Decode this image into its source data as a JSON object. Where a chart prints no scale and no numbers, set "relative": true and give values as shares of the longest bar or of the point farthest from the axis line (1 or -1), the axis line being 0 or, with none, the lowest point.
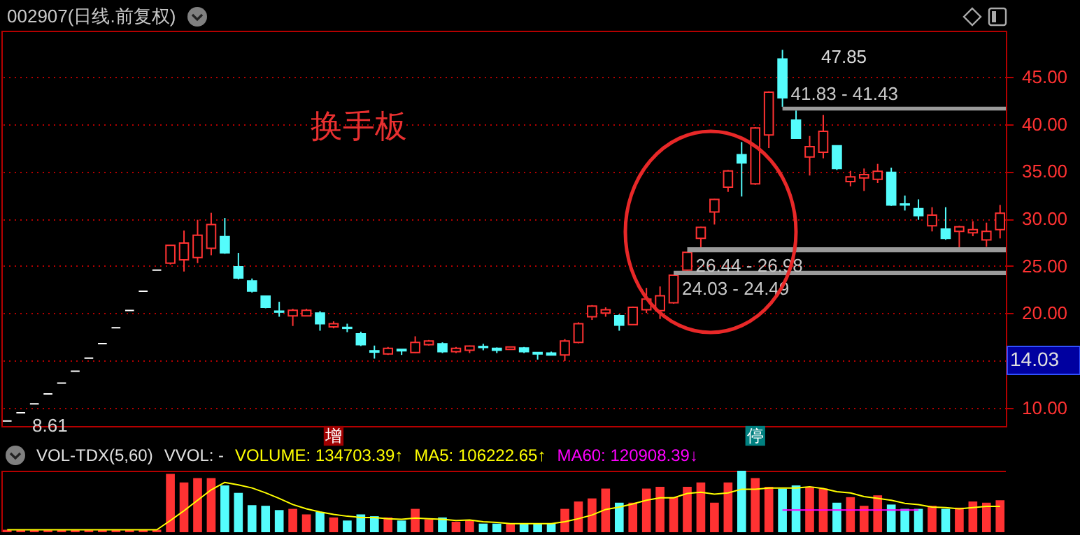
{
  "chart_data": [
    {
      "type": "candlestick",
      "title": "002907(日线.前复权)",
      "categories": [
        null,
        null,
        null,
        null,
        null,
        null,
        null,
        null,
        null,
        null,
        null,
        null,
        null,
        null,
        null,
        null,
        null,
        null,
        null,
        null,
        null,
        null,
        null,
        null,
        null,
        null,
        null,
        null,
        null,
        null,
        null,
        null,
        null,
        null,
        null,
        null,
        null,
        null,
        null,
        null,
        null,
        null,
        null,
        null,
        null,
        null,
        null,
        null,
        null,
        null,
        null,
        null,
        null,
        null,
        null,
        null,
        null,
        null,
        null,
        null,
        null,
        null,
        null,
        null,
        null,
        null,
        null,
        null,
        null,
        null,
        null,
        null,
        null,
        null
      ],
      "ohlc": [
        [
          8.61,
          8.61,
          8.61,
          8.61
        ],
        [
          9.47,
          9.47,
          9.47,
          9.47
        ],
        [
          10.42,
          10.42,
          10.42,
          10.42
        ],
        [
          11.46,
          11.46,
          11.46,
          11.46
        ],
        [
          12.61,
          12.61,
          12.61,
          12.61
        ],
        [
          13.87,
          13.87,
          13.87,
          13.87
        ],
        [
          15.25,
          15.25,
          15.25,
          15.25
        ],
        [
          16.78,
          16.78,
          16.78,
          16.78
        ],
        [
          18.46,
          18.46,
          18.46,
          18.46
        ],
        [
          20.3,
          20.3,
          20.3,
          20.3
        ],
        [
          22.33,
          22.33,
          22.33,
          22.33
        ],
        [
          24.56,
          24.56,
          24.56,
          24.56
        ],
        [
          25.3,
          27.17,
          25.15,
          27.17
        ],
        [
          25.64,
          28.74,
          24.41,
          27.41
        ],
        [
          25.89,
          29.88,
          25.3,
          28.25
        ],
        [
          26.87,
          30.62,
          26.13,
          29.38
        ],
        [
          28.1,
          30.07,
          26.28,
          26.38
        ],
        [
          24.9,
          26.38,
          23.57,
          23.72
        ],
        [
          23.42,
          23.67,
          22.19,
          22.34
        ],
        [
          21.8,
          21.8,
          20.52,
          20.62
        ],
        [
          20.22,
          21.21,
          19.63,
          20.12
        ],
        [
          19.72,
          20.47,
          18.65,
          20.32
        ],
        [
          19.72,
          20.47,
          19.72,
          20.32
        ],
        [
          20.02,
          20.22,
          18.15,
          18.89
        ],
        [
          18.55,
          19.14,
          18.4,
          18.89
        ],
        [
          18.5,
          18.89,
          18.0,
          18.4
        ],
        [
          17.81,
          18.05,
          16.53,
          16.67
        ],
        [
          16.03,
          16.58,
          15.2,
          15.89
        ],
        [
          15.69,
          16.43,
          15.59,
          16.28
        ],
        [
          16.18,
          16.18,
          15.59,
          16.03
        ],
        [
          15.84,
          17.56,
          15.79,
          16.92
        ],
        [
          16.67,
          17.17,
          16.58,
          17.07
        ],
        [
          16.77,
          16.92,
          15.79,
          15.94
        ],
        [
          15.94,
          16.43,
          15.79,
          16.28
        ],
        [
          16.08,
          16.58,
          15.79,
          16.53
        ],
        [
          16.48,
          16.77,
          16.08,
          16.38
        ],
        [
          16.28,
          16.38,
          15.79,
          16.08
        ],
        [
          16.18,
          16.43,
          16.18,
          16.43
        ],
        [
          16.33,
          16.43,
          15.79,
          15.94
        ],
        [
          15.84,
          15.84,
          15.1,
          15.69
        ],
        [
          15.79,
          15.94,
          15.54,
          15.59
        ],
        [
          15.59,
          17.27,
          14.95,
          17.07
        ],
        [
          16.92,
          19.04,
          16.82,
          18.89
        ],
        [
          19.63,
          20.86,
          19.29,
          20.76
        ],
        [
          20.02,
          20.62,
          19.63,
          20.37
        ],
        [
          19.73,
          19.88,
          18.15,
          18.74
        ],
        [
          18.79,
          20.71,
          18.79,
          20.62
        ],
        [
          20.37,
          22.68,
          20.02,
          21.5
        ],
        [
          20.27,
          22.83,
          19.39,
          21.85
        ],
        [
          21.11,
          24.03,
          21.01,
          24.03
        ],
        [
          24.56,
          26.44,
          24.49,
          26.44
        ],
        [
          27.91,
          29.14,
          26.98,
          29.09
        ],
        [
          30.71,
          32.09,
          29.38,
          32.04
        ],
        [
          33.33,
          35.15,
          32.83,
          35.05
        ],
        [
          36.77,
          38.1,
          32.34,
          35.89
        ],
        [
          33.67,
          39.68,
          33.57,
          39.58
        ],
        [
          38.84,
          43.47,
          37.46,
          43.37
        ],
        [
          46.87,
          47.85,
          41.83,
          42.78
        ],
        [
          40.42,
          41.43,
          38.5,
          38.5
        ],
        [
          36.53,
          38.74,
          34.56,
          37.61
        ],
        [
          37.02,
          40.96,
          36.38,
          39.24
        ],
        [
          37.71,
          37.71,
          35.15,
          35.3
        ],
        [
          33.92,
          35.05,
          33.42,
          34.41
        ],
        [
          34.31,
          35.3,
          32.93,
          34.66
        ],
        [
          34.16,
          35.79,
          33.77,
          35.0
        ],
        [
          34.9,
          35.39,
          31.35,
          31.45
        ],
        [
          31.55,
          32.44,
          30.86,
          31.45
        ],
        [
          31.06,
          32.04,
          29.88,
          30.32
        ],
        [
          29.24,
          31.21,
          28.65,
          30.37
        ],
        [
          28.89,
          31.21,
          27.76,
          27.91
        ],
        [
          28.65,
          29.24,
          26.67,
          29.14
        ],
        [
          28.5,
          29.73,
          28.15,
          28.84
        ],
        [
          27.76,
          29.58,
          27.02,
          28.65
        ],
        [
          28.84,
          31.45,
          27.91,
          30.57
        ]
      ],
      "colors": [
        "#ffffff",
        "#ffffff",
        "#ffffff",
        "#ffffff",
        "#ffffff",
        "#ffffff",
        "#ffffff",
        "#ffffff",
        "#ffffff",
        "#ffffff",
        "#ffffff",
        "#ffffff",
        "#ff3232",
        "#ff3232",
        "#ff3232",
        "#ff3232",
        "#54fcfc",
        "#54fcfc",
        "#54fcfc",
        "#54fcfc",
        "#54fcfc",
        "#ff3232",
        "#ff3232",
        "#54fcfc",
        "#ff3232",
        "#54fcfc",
        "#54fcfc",
        "#54fcfc",
        "#ff3232",
        "#54fcfc",
        "#ff3232",
        "#ff3232",
        "#54fcfc",
        "#ff3232",
        "#ff3232",
        "#54fcfc",
        "#54fcfc",
        "#ff3232",
        "#54fcfc",
        "#54fcfc",
        "#54fcfc",
        "#ff3232",
        "#ff3232",
        "#ff3232",
        "#ff3232",
        "#54fcfc",
        "#ff3232",
        "#ff3232",
        "#ff3232",
        "#ff3232",
        "#ff3232",
        "#ff3232",
        "#ff3232",
        "#ff3232",
        "#54fcfc",
        "#ff3232",
        "#ff3232",
        "#54fcfc",
        "#54fcfc",
        "#ff3232",
        "#ff3232",
        "#54fcfc",
        "#ff3232",
        "#ff3232",
        "#ff3232",
        "#54fcfc",
        "#54fcfc",
        "#54fcfc",
        "#ff3232",
        "#54fcfc",
        "#ff3232",
        "#ff3232",
        "#ff3232",
        "#ff3232"
      ],
      "ylim": [
        8.07,
        49.87
      ],
      "yticks": [
        {
          "value": 10,
          "label": "10.00"
        },
        {
          "value": 15,
          "label": null
        },
        {
          "value": 20,
          "label": "20.00"
        },
        {
          "value": 25,
          "label": "25.00"
        },
        {
          "value": 30,
          "label": "30.00"
        },
        {
          "value": 35,
          "label": "35.00"
        },
        {
          "value": 40,
          "label": "40.00"
        },
        {
          "value": 45,
          "label": "45.00"
        }
      ],
      "grid": "y",
      "tick_labels": "y",
      "bands": [
        {
          "axis": "y",
          "from": 41.83,
          "to": 41.43,
          "label": "41.83 - 41.43"
        },
        {
          "axis": "y",
          "from": 26.44,
          "to": 26.98,
          "label": "26.44 - 26.98"
        },
        {
          "axis": "y",
          "from": 24.03,
          "to": 24.49,
          "label": "24.03 - 24.49"
        }
      ],
      "annotations": [
        "换手板",
        "增",
        "停",
        "47.85",
        "8.61",
        "14.03"
      ]
    },
    {
      "type": "bar",
      "relative": true,
      "title": "VOL-TDX(5,60)",
      "tick_labels": false,
      "categories": [
        null,
        null,
        null,
        null,
        null,
        null,
        null,
        null,
        null,
        null,
        null,
        null,
        null,
        null,
        null,
        null,
        null,
        null,
        null,
        null,
        null,
        null,
        null,
        null,
        null,
        null,
        null,
        null,
        null,
        null,
        null,
        null,
        null,
        null,
        null,
        null,
        null,
        null,
        null,
        null,
        null,
        null,
        null,
        null,
        null,
        null,
        null,
        null,
        null,
        null,
        null,
        null,
        null,
        null,
        null,
        null,
        null,
        null,
        null,
        null,
        null,
        null,
        null,
        null,
        null,
        null,
        null,
        null,
        null,
        null,
        null,
        null,
        null,
        null
      ],
      "annotations": [
        "VVOL: -",
        "VOLUME: 134703.39↑",
        "MA5: 106222.65↑",
        "MA60: 120908.39↓"
      ],
      "series": [
        {
          "colors": [
            "#ff3232",
            "#ff3232",
            "#ff3232",
            "#ff3232",
            "#ff3232",
            "#ff3232",
            "#ff3232",
            "#ff3232",
            "#ff3232",
            "#ff3232",
            "#ff3232",
            "#ff3232",
            "#ff3232",
            "#ff3232",
            "#ff3232",
            "#ff3232",
            "#54fcfc",
            "#54fcfc",
            "#54fcfc",
            "#54fcfc",
            "#54fcfc",
            "#ff3232",
            "#ff3232",
            "#54fcfc",
            "#ff3232",
            "#54fcfc",
            "#54fcfc",
            "#54fcfc",
            "#ff3232",
            "#54fcfc",
            "#ff3232",
            "#ff3232",
            "#54fcfc",
            "#ff3232",
            "#ff3232",
            "#54fcfc",
            "#54fcfc",
            "#ff3232",
            "#54fcfc",
            "#54fcfc",
            "#54fcfc",
            "#ff3232",
            "#ff3232",
            "#ff3232",
            "#ff3232",
            "#54fcfc",
            "#ff3232",
            "#ff3232",
            "#ff3232",
            "#ff3232",
            "#ff3232",
            "#ff3232",
            "#ff3232",
            "#ff3232",
            "#54fcfc",
            "#ff3232",
            "#ff3232",
            "#54fcfc",
            "#54fcfc",
            "#ff3232",
            "#ff3232",
            "#54fcfc",
            "#ff3232",
            "#ff3232",
            "#ff3232",
            "#54fcfc",
            "#54fcfc",
            "#54fcfc",
            "#ff3232",
            "#54fcfc",
            "#ff3232",
            "#ff3232",
            "#ff3232",
            "#ff3232"
          ],
          "values": [
            0.04,
            0.04,
            0.04,
            0.04,
            0.04,
            0.04,
            0.04,
            0.04,
            0.04,
            0.04,
            0.04,
            0.04,
            0.95,
            0.81,
            0.88,
            0.88,
            0.76,
            0.64,
            0.44,
            0.43,
            0.36,
            0.38,
            0.29,
            0.33,
            0.24,
            0.19,
            0.29,
            0.26,
            0.24,
            0.19,
            0.38,
            0.21,
            0.24,
            0.17,
            0.19,
            0.14,
            0.14,
            0.14,
            0.14,
            0.14,
            0.14,
            0.38,
            0.5,
            0.55,
            0.71,
            0.48,
            0.48,
            0.71,
            0.74,
            0.57,
            0.74,
            0.81,
            0.48,
            0.81,
            1,
            0.88,
            0.74,
            0.71,
            0.76,
            0.74,
            0.71,
            0.48,
            0.57,
            0.43,
            0.6,
            0.45,
            0.38,
            0.38,
            0.43,
            0.38,
            0.4,
            0.5,
            0.48,
            0.52
          ]
        },
        {
          "type": "line",
          "color": "#ffff00",
          "values": [
            0.04,
            0.04,
            0.04,
            0.04,
            0.04,
            0.04,
            0.04,
            0.04,
            0.04,
            0.04,
            0.04,
            0.04,
            0.19,
            0.35,
            0.52,
            0.69,
            0.81,
            0.77,
            0.72,
            0.64,
            0.55,
            0.45,
            0.38,
            0.33,
            0.29,
            0.26,
            0.24,
            0.24,
            0.22,
            0.21,
            0.23,
            0.22,
            0.21,
            0.19,
            0.2,
            0.17,
            0.16,
            0.14,
            0.14,
            0.14,
            0.14,
            0.17,
            0.22,
            0.28,
            0.37,
            0.41,
            0.46,
            0.52,
            0.56,
            0.56,
            0.63,
            0.65,
            0.62,
            0.64,
            0.7,
            0.7,
            0.72,
            0.72,
            0.72,
            0.74,
            0.71,
            0.66,
            0.64,
            0.58,
            0.55,
            0.52,
            0.47,
            0.45,
            0.41,
            0.4,
            0.38,
            0.4,
            0.42,
            0.42
          ]
        },
        {
          "type": "line",
          "color": "#ff00ff",
          "values": [
            null,
            null,
            null,
            null,
            null,
            null,
            null,
            null,
            null,
            null,
            null,
            null,
            null,
            null,
            null,
            null,
            null,
            null,
            null,
            null,
            null,
            null,
            null,
            null,
            null,
            null,
            null,
            null,
            null,
            null,
            null,
            null,
            null,
            null,
            null,
            null,
            null,
            null,
            null,
            null,
            null,
            null,
            null,
            null,
            null,
            null,
            null,
            null,
            null,
            null,
            null,
            null,
            null,
            null,
            null,
            null,
            null,
            0.36,
            0.36,
            0.36,
            0.36,
            0.36,
            0.36,
            0.36,
            0.36,
            0.36,
            0.36,
            0.36,
            null,
            null,
            null,
            null,
            null,
            null
          ]
        }
      ]
    }
  ]
}
